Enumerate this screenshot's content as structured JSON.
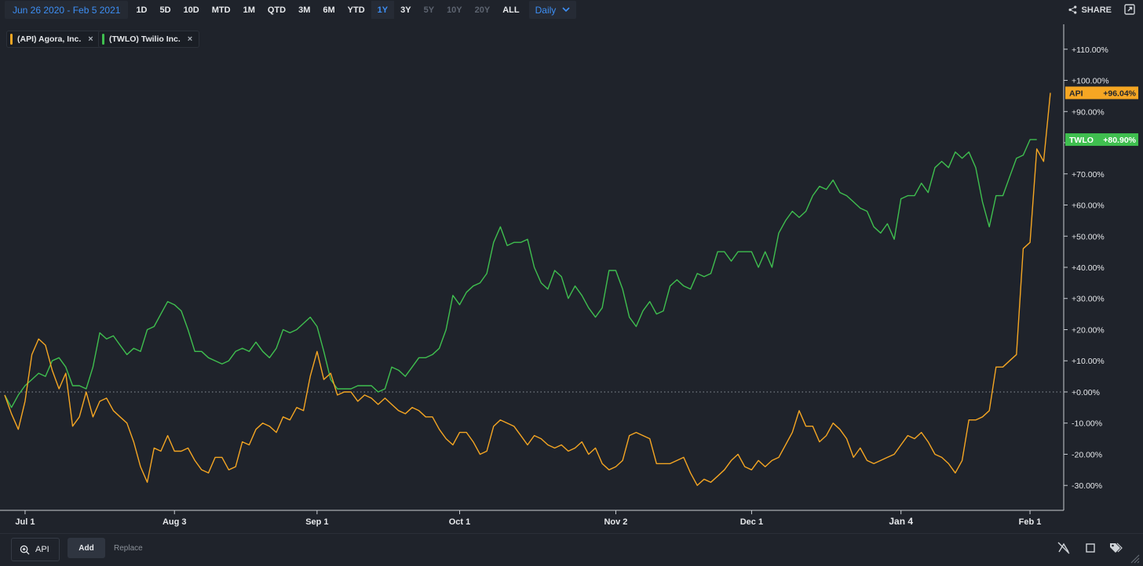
{
  "toolbar": {
    "date_range": "Jun 26 2020 - Feb 5 2021",
    "ranges": [
      {
        "label": "1D",
        "state": "normal"
      },
      {
        "label": "5D",
        "state": "normal"
      },
      {
        "label": "10D",
        "state": "normal"
      },
      {
        "label": "MTD",
        "state": "normal"
      },
      {
        "label": "1M",
        "state": "normal"
      },
      {
        "label": "QTD",
        "state": "normal"
      },
      {
        "label": "3M",
        "state": "normal"
      },
      {
        "label": "6M",
        "state": "normal"
      },
      {
        "label": "YTD",
        "state": "normal"
      },
      {
        "label": "1Y",
        "state": "active"
      },
      {
        "label": "3Y",
        "state": "normal"
      },
      {
        "label": "5Y",
        "state": "disabled"
      },
      {
        "label": "10Y",
        "state": "disabled"
      },
      {
        "label": "20Y",
        "state": "disabled"
      },
      {
        "label": "ALL",
        "state": "normal"
      }
    ],
    "interval": "Daily",
    "interval_icon": "chevron-down-icon",
    "share_label": "SHARE",
    "share_icon": "share-icon",
    "expand_icon": "expand-icon"
  },
  "legend": [
    {
      "label": "(API) Agora, Inc.",
      "color": "#f5a623",
      "close": "×"
    },
    {
      "label": "(TWLO) Twilio Inc.",
      "color": "#3fbf4f",
      "close": "×"
    }
  ],
  "bottom": {
    "symbol": "API",
    "symbol_icon": "zoom-in-icon",
    "add_label": "Add",
    "replace_label": "Replace",
    "tools": [
      "hide-drawings-icon",
      "square-icon",
      "tags-icon"
    ]
  },
  "colors": {
    "background": "#1f232b",
    "grid_zero": "#8a9099",
    "api": "#f5a623",
    "twlo": "#3fbf4f",
    "accent": "#3d8ff5"
  },
  "chart_data": {
    "type": "line",
    "x_tick_labels": [
      "Jul 1",
      "Aug 3",
      "Sep 1",
      "Oct 1",
      "Nov 2",
      "Dec 1",
      "Jan 4",
      "Feb 1"
    ],
    "x_tick_index": [
      3,
      25,
      46,
      67,
      90,
      110,
      132,
      151
    ],
    "y_ticks": [
      110,
      100,
      90,
      80,
      70,
      60,
      50,
      40,
      30,
      20,
      10,
      0,
      -10,
      -20,
      -30
    ],
    "y_tick_labels": [
      "+110.00%",
      "+100.00%",
      "+90.00%",
      "+80.00%",
      "+70.00%",
      "+60.00%",
      "+50.00%",
      "+40.00%",
      "+30.00%",
      "+20.00%",
      "+10.00%",
      "+0.00%",
      "-10.00%",
      "-20.00%",
      "-30.00%"
    ],
    "ylim": [
      -38,
      118
    ],
    "zero_line": "dotted",
    "series": [
      {
        "name": "API",
        "color": "#f5a623",
        "last_label": "+96.04%",
        "values": [
          -1,
          -7,
          -12,
          -3,
          12,
          17,
          15,
          7,
          1,
          6,
          -11,
          -8,
          0,
          -8,
          -3,
          -2,
          -6,
          -8,
          -10,
          -16,
          -24,
          -29,
          -18,
          -19,
          -14,
          -19,
          -19,
          -18,
          -22,
          -25,
          -26,
          -21,
          -21,
          -25,
          -24,
          -16,
          -17,
          -12,
          -10,
          -11,
          -13,
          -8,
          -9,
          -5,
          -6,
          5,
          13,
          4,
          6,
          -1,
          0,
          0,
          -3,
          -1,
          -2,
          -4,
          -2,
          -4,
          -6,
          -7,
          -5,
          -6,
          -8,
          -8,
          -12,
          -15,
          -17,
          -13,
          -13,
          -16,
          -20,
          -19,
          -11,
          -9,
          -10,
          -11,
          -14,
          -17,
          -14,
          -15,
          -17,
          -18,
          -17,
          -19,
          -18,
          -16,
          -20,
          -18,
          -23,
          -25,
          -24,
          -22,
          -14,
          -13,
          -14,
          -15,
          -23,
          -23,
          -23,
          -22,
          -21,
          -26,
          -30,
          -28,
          -29,
          -27,
          -25,
          -22,
          -20,
          -24,
          -25,
          -22,
          -24,
          -22,
          -21,
          -17,
          -13,
          -6,
          -11,
          -11,
          -16,
          -14,
          -10,
          -12,
          -15,
          -21,
          -18,
          -22,
          -23,
          -22,
          -21,
          -20,
          -17,
          -14,
          -15,
          -13,
          -16,
          -20,
          -21,
          -23,
          -26,
          -22,
          -9,
          -9,
          -8,
          -6,
          8,
          8,
          10,
          12,
          46,
          48,
          78,
          74,
          96
        ]
      },
      {
        "name": "TWLO",
        "color": "#3fbf4f",
        "last_label": "+80.90%",
        "values": [
          -1,
          -5,
          -1,
          2,
          4,
          6,
          5,
          10,
          11,
          8,
          2,
          2,
          1,
          8,
          19,
          17,
          18,
          15,
          12,
          14,
          13,
          20,
          21,
          25,
          29,
          28,
          26,
          20,
          13,
          13,
          11,
          10,
          9,
          10,
          13,
          14,
          13,
          16,
          13,
          11,
          14,
          20,
          19,
          20,
          22,
          24,
          21,
          13,
          4,
          1,
          1,
          1,
          2,
          2,
          2,
          0,
          1,
          8,
          7,
          5,
          8,
          11,
          11,
          12,
          14,
          20,
          31,
          28,
          32,
          34,
          35,
          38,
          48,
          53,
          47,
          48,
          48,
          49,
          40,
          35,
          33,
          39,
          37,
          30,
          34,
          31,
          27,
          24,
          27,
          39,
          39,
          33,
          24,
          21,
          26,
          29,
          25,
          26,
          34,
          36,
          34,
          33,
          38,
          37,
          38,
          45,
          45,
          42,
          45,
          45,
          45,
          40,
          45,
          40,
          51,
          55,
          58,
          56,
          58,
          63,
          66,
          65,
          68,
          64,
          63,
          61,
          59,
          58,
          53,
          51,
          54,
          49,
          62,
          63,
          63,
          67,
          64,
          72,
          74,
          72,
          77,
          75,
          77,
          72,
          61,
          53,
          63,
          63,
          69,
          75,
          76,
          81,
          81
        ]
      }
    ]
  }
}
